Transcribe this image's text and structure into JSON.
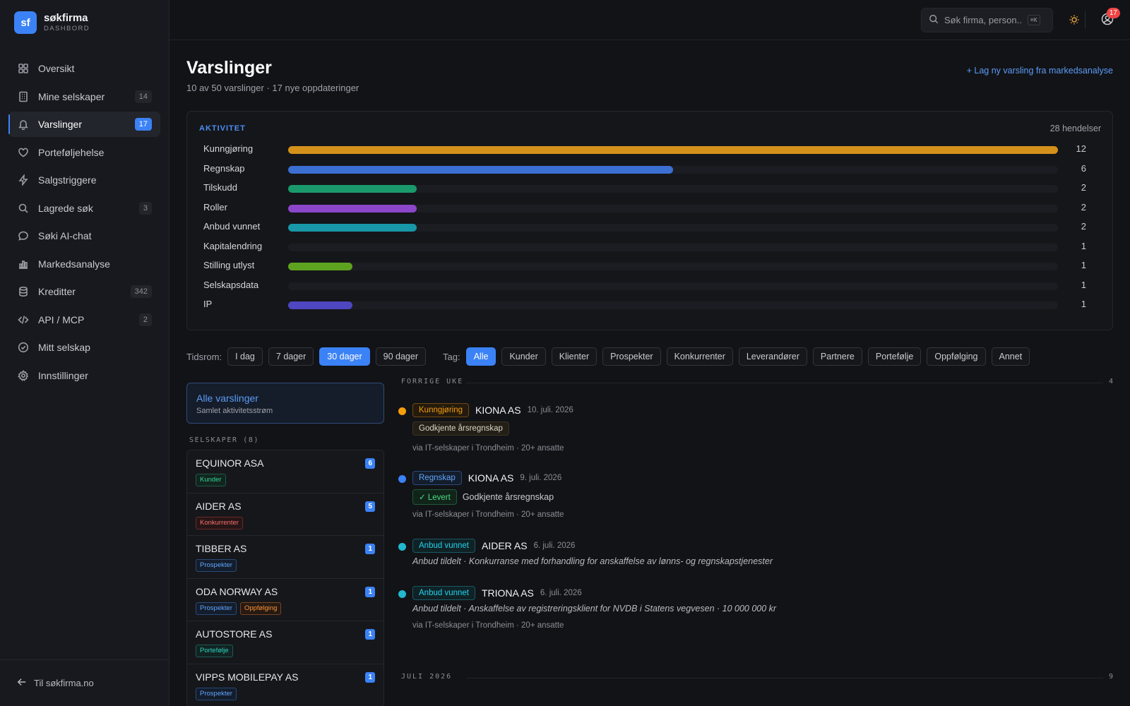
{
  "brand": {
    "logo": "sf",
    "name": "søkfirma",
    "sub": "DASHBORD"
  },
  "nav": [
    {
      "label": "Oversikt",
      "icon": "grid-icon",
      "badge": ""
    },
    {
      "label": "Mine selskaper",
      "icon": "building-icon",
      "badge": "14"
    },
    {
      "label": "Varslinger",
      "icon": "bell-icon",
      "badge": "17",
      "active": true
    },
    {
      "label": "Porteføljehelse",
      "icon": "heart-icon",
      "badge": ""
    },
    {
      "label": "Salgstriggere",
      "icon": "bolt-icon",
      "badge": ""
    },
    {
      "label": "Lagrede søk",
      "icon": "search-icon",
      "badge": "3"
    },
    {
      "label": "Søki AI-chat",
      "icon": "chat-icon",
      "badge": ""
    },
    {
      "label": "Markedsanalyse",
      "icon": "bar-chart-icon",
      "badge": ""
    },
    {
      "label": "Kreditter",
      "icon": "database-icon",
      "badge": "342"
    },
    {
      "label": "API / MCP",
      "icon": "code-icon",
      "badge": "2"
    },
    {
      "label": "Mitt selskap",
      "icon": "check-circle-icon",
      "badge": ""
    },
    {
      "label": "Innstillinger",
      "icon": "gear-icon",
      "badge": ""
    }
  ],
  "sidebar_footer": "Til søkfirma.no",
  "topbar": {
    "search_placeholder": "Søk firma, person...",
    "shortcut": "⌘K",
    "notifications": "17"
  },
  "page": {
    "title": "Varslinger",
    "subtitle": "10 av 50 varslinger · 17 nye oppdateringer",
    "new_link": "+ Lag ny varsling fra markedsanalyse"
  },
  "activity": {
    "label": "AKTIVITET",
    "count": "28 hendelser",
    "max": 12,
    "rows": [
      {
        "name": "Kunngjøring",
        "value": 12,
        "color": "#d4911a"
      },
      {
        "name": "Regnskap",
        "value": 6,
        "color": "#3b6fd1"
      },
      {
        "name": "Tilskudd",
        "value": 2,
        "color": "#1a9a6c"
      },
      {
        "name": "Roller",
        "value": 2,
        "color": "#8b46c9"
      },
      {
        "name": "Anbud vunnet",
        "value": 2,
        "color": "#1797a8"
      },
      {
        "name": "Kapitalendring",
        "value": 1,
        "color": ""
      },
      {
        "name": "Stilling utlyst",
        "value": 1,
        "color": "#5ea31f"
      },
      {
        "name": "Selskapsdata",
        "value": 1,
        "color": ""
      },
      {
        "name": "IP",
        "value": 1,
        "color": "#4f46c2"
      }
    ]
  },
  "filters": {
    "period_label": "Tidsrom:",
    "periods": [
      "I dag",
      "7 dager",
      "30 dager",
      "90 dager"
    ],
    "period_active": "30 dager",
    "tag_label": "Tag:",
    "tags": [
      "Alle",
      "Kunder",
      "Klienter",
      "Prospekter",
      "Konkurrenter",
      "Leverandører",
      "Partnere",
      "Portefølje",
      "Oppfølging",
      "Annet"
    ],
    "tag_active": "Alle"
  },
  "all_card": {
    "title": "Alle varslinger",
    "sub": "Samlet aktivitetsstrøm"
  },
  "companies_label": "SELSKAPER (8)",
  "companies": [
    {
      "name": "EQUINOR ASA",
      "count": "6",
      "tags": [
        {
          "label": "Kunder",
          "kind": "kunder"
        }
      ]
    },
    {
      "name": "AIDER AS",
      "count": "5",
      "tags": [
        {
          "label": "Konkurrenter",
          "kind": "konk"
        }
      ]
    },
    {
      "name": "TIBBER AS",
      "count": "1",
      "tags": [
        {
          "label": "Prospekter",
          "kind": "prosp"
        }
      ]
    },
    {
      "name": "ODA NORWAY AS",
      "count": "1",
      "tags": [
        {
          "label": "Prospekter",
          "kind": "prosp"
        },
        {
          "label": "Oppfølging",
          "kind": "oppf"
        }
      ]
    },
    {
      "name": "AUTOSTORE AS",
      "count": "1",
      "tags": [
        {
          "label": "Portefølje",
          "kind": "port"
        }
      ]
    },
    {
      "name": "VIPPS MOBILEPAY AS",
      "count": "1",
      "tags": [
        {
          "label": "Prospekter",
          "kind": "prosp"
        }
      ]
    }
  ],
  "timeline": {
    "groups": [
      {
        "label": "FORRIGE UKE",
        "count": "4"
      },
      {
        "label": "JULI 2026",
        "count": "9"
      }
    ],
    "events": [
      {
        "type": "Kunngjøring",
        "company": "KIONA AS",
        "date": "10. juli. 2026",
        "detail_pill": "Godkjente årsregnskap",
        "via": "via IT-selskaper i Trondheim · 20+ ansatte",
        "dot": "#f59e0b"
      },
      {
        "type": "Regnskap",
        "company": "KIONA AS",
        "date": "9. juli. 2026",
        "status": "Levert",
        "detail": "Godkjente årsregnskap",
        "via": "via IT-selskaper i Trondheim · 20+ ansatte",
        "dot": "#3b82f6"
      },
      {
        "type": "Anbud vunnet",
        "company": "AIDER AS",
        "date": "6. juli. 2026",
        "desc": "Anbud tildelt · Konkurranse med forhandling for anskaffelse av lønns- og regnskapstjenester",
        "dot": "#22b8cf"
      },
      {
        "type": "Anbud vunnet",
        "company": "TRIONA AS",
        "date": "6. juli. 2026",
        "desc": "Anbud tildelt · Anskaffelse av registreringsklient for NVDB i Statens vegvesen · 10 000 000 kr",
        "via": "via IT-selskaper i Trondheim · 20+ ansatte",
        "dot": "#22b8cf"
      }
    ]
  }
}
